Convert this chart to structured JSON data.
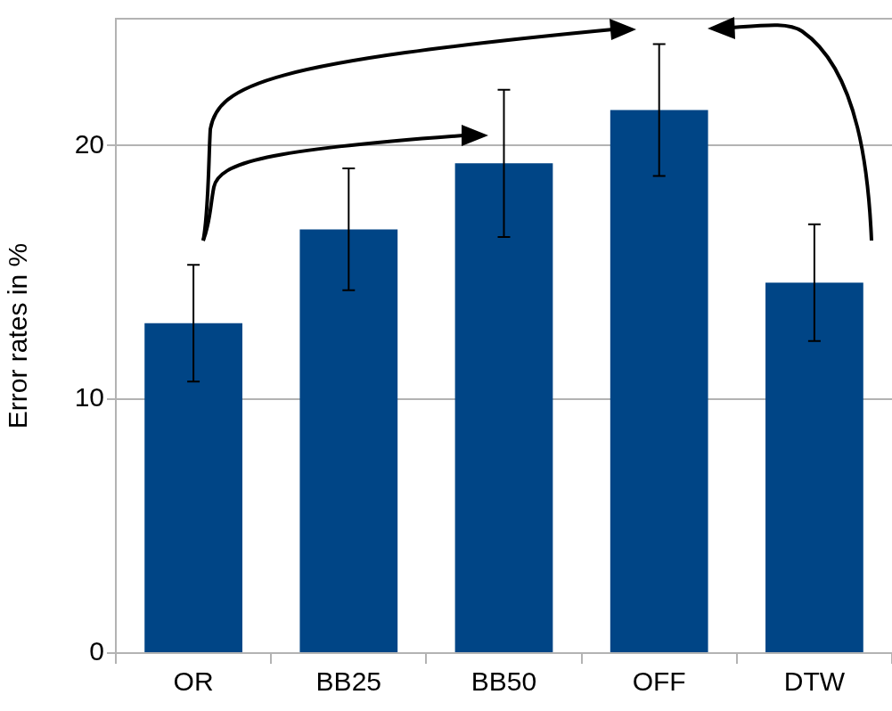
{
  "chart_data": {
    "type": "bar",
    "ylabel": "Error rates in %",
    "categories": [
      "OR",
      "BB25",
      "BB50",
      "OFF",
      "DTW"
    ],
    "values": [
      13.0,
      16.7,
      19.3,
      21.4,
      14.6
    ],
    "errors": [
      2.3,
      2.4,
      2.9,
      2.6,
      2.3
    ],
    "color": "#004586",
    "ylim": [
      0,
      25
    ],
    "yticks": [
      0,
      10,
      20
    ],
    "grid": "y",
    "legend": false
  }
}
